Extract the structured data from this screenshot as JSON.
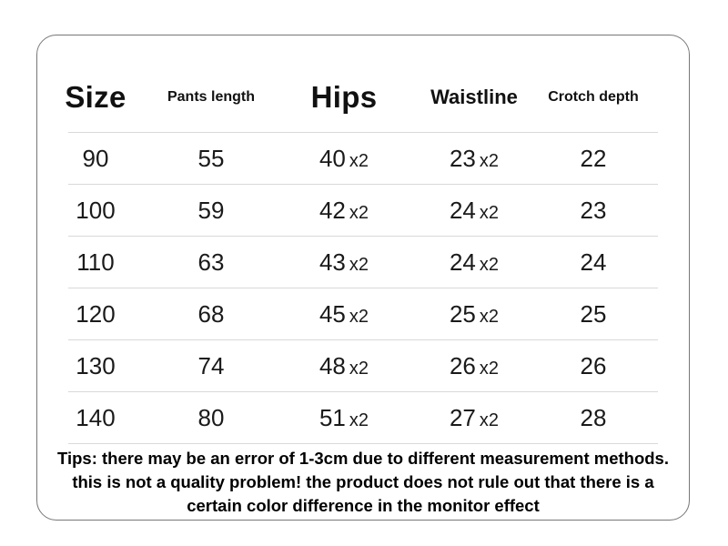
{
  "chart_data": {
    "type": "table",
    "columns": [
      "Size",
      "Pants length",
      "Hips",
      "Waistline",
      "Crotch depth"
    ],
    "rows": [
      {
        "size": "90",
        "pants_length": "55",
        "hips": "40",
        "hips_unit": "x2",
        "waistline": "23",
        "waistline_unit": "x2",
        "crotch_depth": "22"
      },
      {
        "size": "100",
        "pants_length": "59",
        "hips": "42",
        "hips_unit": "x2",
        "waistline": "24",
        "waistline_unit": "x2",
        "crotch_depth": "23"
      },
      {
        "size": "110",
        "pants_length": "63",
        "hips": "43",
        "hips_unit": "x2",
        "waistline": "24",
        "waistline_unit": "x2",
        "crotch_depth": "24"
      },
      {
        "size": "120",
        "pants_length": "68",
        "hips": "45",
        "hips_unit": "x2",
        "waistline": "25",
        "waistline_unit": "x2",
        "crotch_depth": "25"
      },
      {
        "size": "130",
        "pants_length": "74",
        "hips": "48",
        "hips_unit": "x2",
        "waistline": "26",
        "waistline_unit": "x2",
        "crotch_depth": "26"
      },
      {
        "size": "140",
        "pants_length": "80",
        "hips": "51",
        "hips_unit": "x2",
        "waistline": "27",
        "waistline_unit": "x2",
        "crotch_depth": "28"
      }
    ],
    "note": "Tips: there may be an error of 1-3cm due to different measurement methods. this is not a quality problem! the product does not rule out that there is a certain color difference in the monitor effect",
    "layout": {
      "grid": "off",
      "header_divider": "on",
      "row_dividers": "on"
    }
  },
  "colors": {
    "text": "#111111",
    "divider": "#d9d9d9",
    "card_border": "#777777",
    "background": "#ffffff"
  }
}
